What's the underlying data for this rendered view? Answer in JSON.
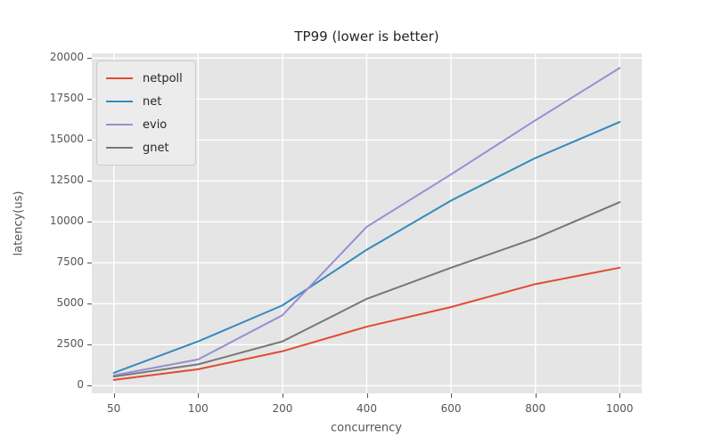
{
  "figure": {
    "title": "TP99 (lower is better)",
    "xlabel": "concurrency",
    "ylabel": "latency(us)"
  },
  "chart_data": {
    "type": "line",
    "title": "TP99 (lower is better)",
    "xlabel": "concurrency",
    "ylabel": "latency(us)",
    "categories": [
      50,
      100,
      200,
      400,
      600,
      800,
      1000
    ],
    "series": [
      {
        "name": "netpoll",
        "color": "#E24A33",
        "values": [
          350,
          1000,
          2100,
          3600,
          4800,
          6200,
          7200
        ]
      },
      {
        "name": "net",
        "color": "#348ABD",
        "values": [
          780,
          2700,
          4900,
          8300,
          11300,
          13900,
          16100
        ]
      },
      {
        "name": "evio",
        "color": "#988ED5",
        "values": [
          630,
          1600,
          4300,
          9700,
          12900,
          16200,
          19400
        ]
      },
      {
        "name": "gnet",
        "color": "#777777",
        "values": [
          550,
          1300,
          2700,
          5300,
          7200,
          9000,
          11200
        ]
      }
    ],
    "ylim": [
      0,
      20000
    ],
    "yticks": [
      0,
      2500,
      5000,
      7500,
      10000,
      12500,
      15000,
      17500,
      20000
    ],
    "grid": true,
    "legend_position": "upper left",
    "style": {
      "plot_background": "#e5e5e5",
      "grid_color": "#ffffff",
      "tick_label_color": "#555555",
      "axis_label_color": "#555555",
      "title_color": "#262626",
      "legend_background": "#ececec",
      "legend_border": "#cccccc"
    }
  }
}
